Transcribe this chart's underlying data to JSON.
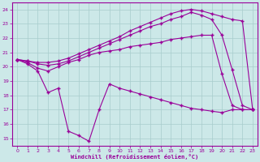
{
  "xlabel": "Windchill (Refroidissement éolien,°C)",
  "background_color": "#cce8e8",
  "grid_color": "#a8cccc",
  "line_color": "#990099",
  "xlim": [
    -0.5,
    23.5
  ],
  "ylim": [
    14.5,
    24.5
  ],
  "yticks": [
    15,
    16,
    17,
    18,
    19,
    20,
    21,
    22,
    23,
    24
  ],
  "xticks": [
    0,
    1,
    2,
    3,
    4,
    5,
    6,
    7,
    8,
    9,
    10,
    11,
    12,
    13,
    14,
    15,
    16,
    17,
    18,
    19,
    20,
    21,
    22,
    23
  ],
  "series": [
    {
      "x": [
        0,
        1,
        2,
        3,
        4,
        5,
        6,
        7,
        8,
        9,
        10,
        11,
        12,
        13,
        14,
        15,
        16,
        17,
        18,
        19,
        20,
        21,
        22,
        23
      ],
      "y": [
        20.5,
        20.2,
        19.7,
        18.2,
        18.5,
        15.5,
        15.2,
        14.8,
        17.0,
        18.8,
        18.5,
        18.3,
        18.1,
        17.9,
        17.7,
        17.5,
        17.3,
        17.1,
        17.0,
        16.9,
        16.8,
        17.0,
        17.0,
        17.0
      ]
    },
    {
      "x": [
        0,
        1,
        2,
        3,
        4,
        5,
        6,
        7,
        8,
        9,
        10,
        11,
        12,
        13,
        14,
        15,
        16,
        17,
        18,
        19,
        20,
        21,
        22,
        23
      ],
      "y": [
        20.5,
        20.3,
        19.9,
        19.7,
        20.0,
        20.3,
        20.5,
        20.8,
        21.0,
        21.1,
        21.2,
        21.4,
        21.5,
        21.6,
        21.7,
        21.9,
        22.0,
        22.1,
        22.2,
        22.2,
        19.5,
        17.3,
        17.0,
        17.0
      ]
    },
    {
      "x": [
        0,
        1,
        2,
        3,
        4,
        5,
        6,
        7,
        8,
        9,
        10,
        11,
        12,
        13,
        14,
        15,
        16,
        17,
        18,
        19,
        20,
        21,
        22,
        23
      ],
      "y": [
        20.5,
        20.4,
        20.2,
        20.1,
        20.2,
        20.4,
        20.7,
        21.0,
        21.3,
        21.6,
        21.9,
        22.2,
        22.5,
        22.8,
        23.0,
        23.3,
        23.5,
        23.8,
        23.6,
        23.3,
        22.2,
        19.8,
        17.3,
        17.0
      ]
    },
    {
      "x": [
        0,
        1,
        2,
        3,
        4,
        5,
        6,
        7,
        8,
        9,
        10,
        11,
        12,
        13,
        14,
        15,
        16,
        17,
        18,
        19,
        20,
        21,
        22,
        23
      ],
      "y": [
        20.5,
        20.4,
        20.3,
        20.3,
        20.4,
        20.6,
        20.9,
        21.2,
        21.5,
        21.8,
        22.1,
        22.5,
        22.8,
        23.1,
        23.4,
        23.7,
        23.9,
        24.0,
        23.9,
        23.7,
        23.5,
        23.3,
        23.2,
        17.0
      ]
    }
  ]
}
